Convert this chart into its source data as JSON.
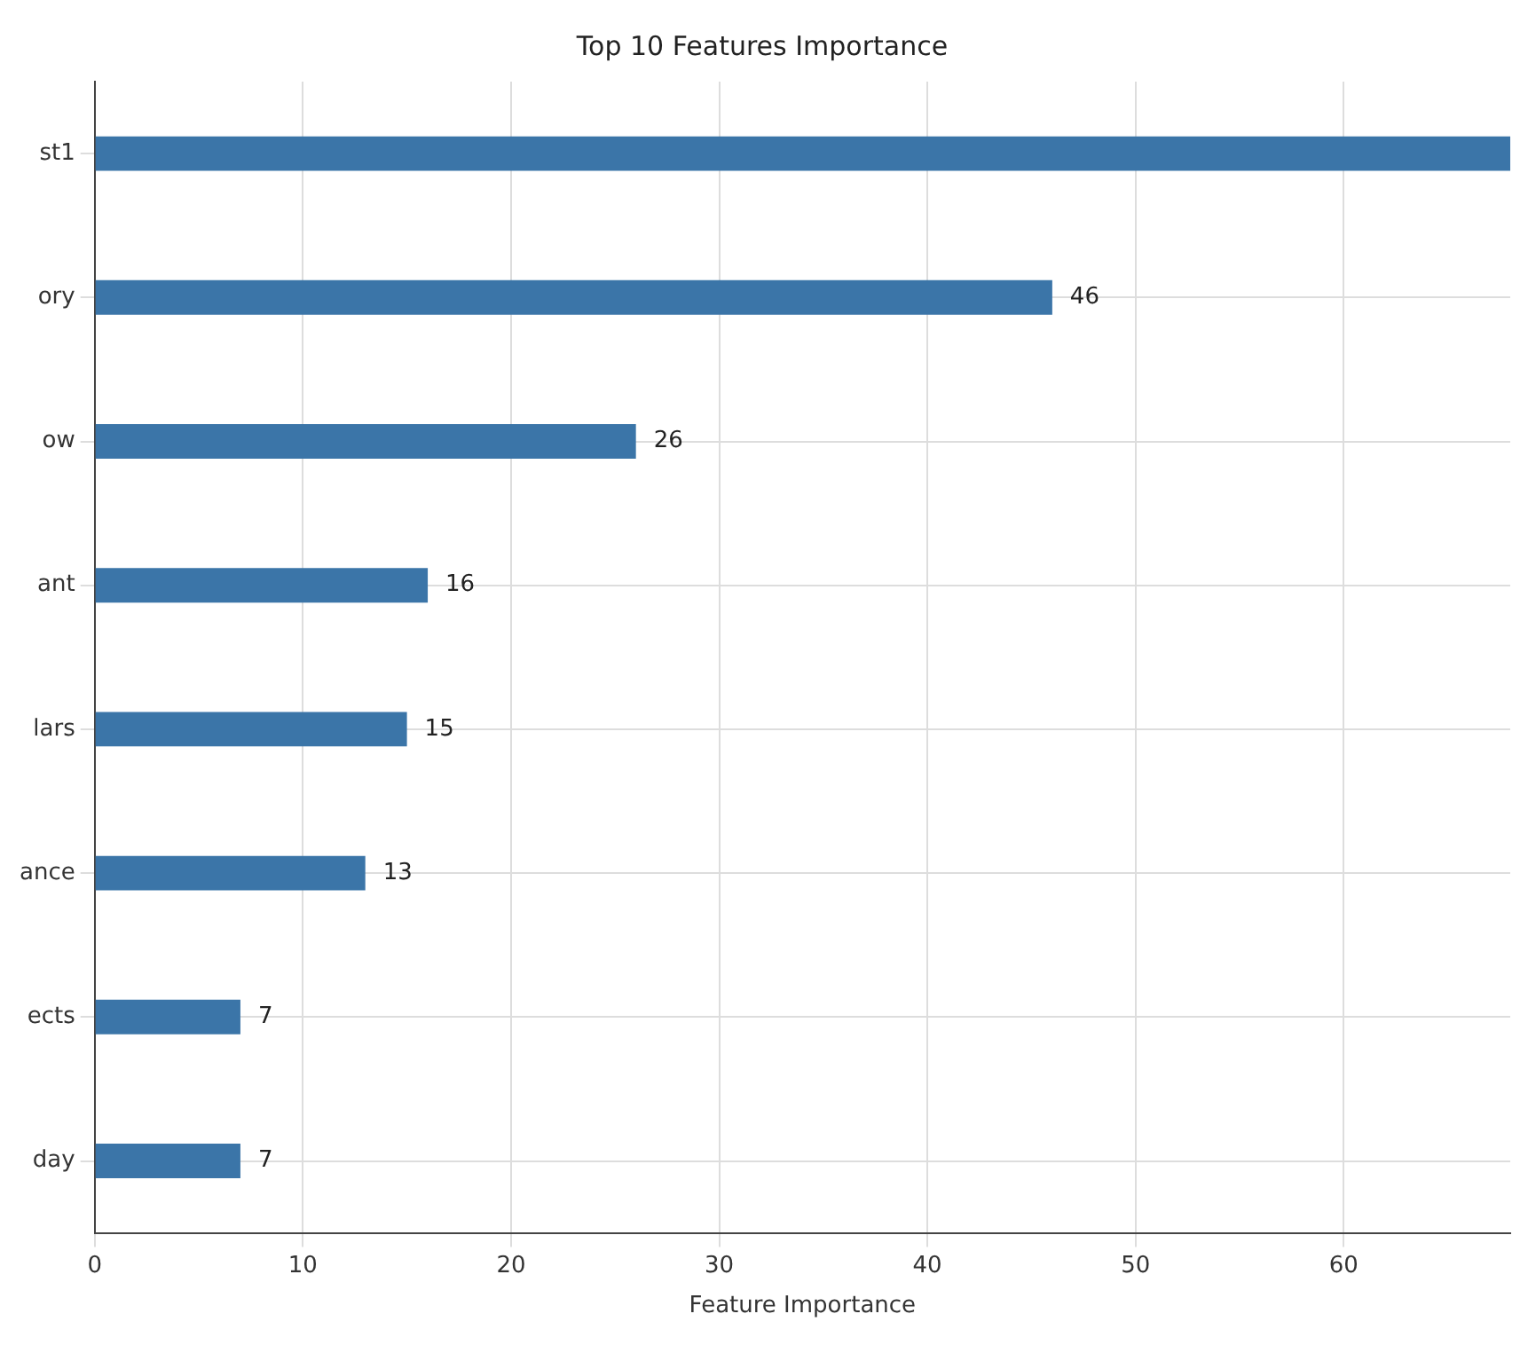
{
  "chart_data": {
    "type": "bar",
    "orientation": "horizontal",
    "title": "Top 10 Features Importance",
    "xlabel": "Feature Importance",
    "categories": [
      "st1",
      "ory",
      "ow",
      "ant",
      "lars",
      "ance",
      "ects",
      "day"
    ],
    "values": [
      68,
      46,
      26,
      16,
      15,
      13,
      7,
      7
    ],
    "value_labels": [
      null,
      "46",
      "26",
      "16",
      "15",
      "13",
      "7",
      "7"
    ],
    "color": "#3b75a8",
    "xlim": [
      0,
      68
    ],
    "xticks": [
      0,
      10,
      20,
      30,
      40,
      50,
      60
    ],
    "grid": true
  }
}
